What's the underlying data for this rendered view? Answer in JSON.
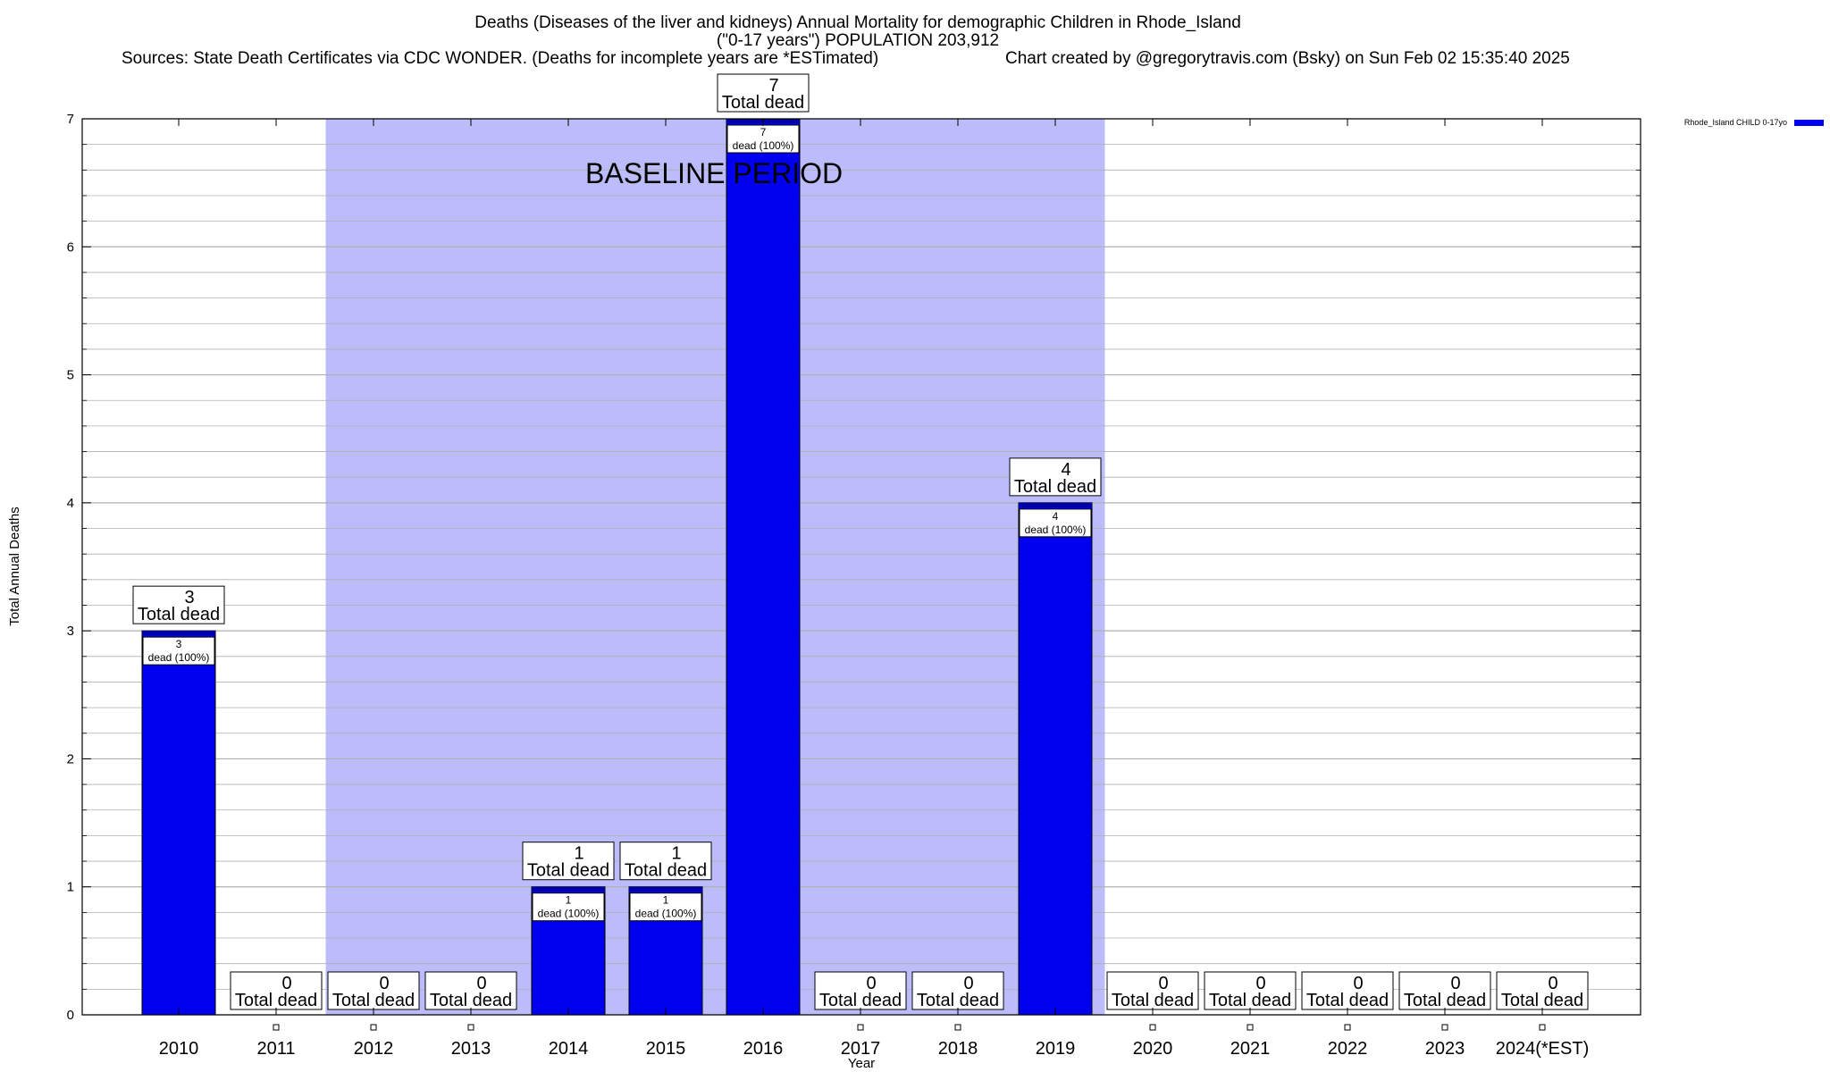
{
  "chart_data": {
    "type": "bar",
    "title_lines": [
      "Deaths (Diseases of the liver and kidneys) Annual Mortality for demographic Children in Rhode_Island",
      "(\"0-17 years\") POPULATION 203,912"
    ],
    "sources": "Sources: State Death Certificates via CDC WONDER. (Deaths for incomplete years are *ESTimated)",
    "credit": "Chart created by @gregorytravis.com (Bsky) on Sun Feb 02 15:35:40 2025",
    "xlabel": "Year",
    "ylabel": "Total Annual Deaths",
    "ylim": [
      0,
      7
    ],
    "yticks": [
      "0",
      "1",
      "2",
      "3",
      "4",
      "5",
      "6",
      "7"
    ],
    "categories": [
      "2010",
      "2011",
      "2012",
      "2013",
      "2014",
      "2015",
      "2016",
      "2017",
      "2018",
      "2019",
      "2020",
      "2021",
      "2022",
      "2023",
      "2024(*EST)"
    ],
    "series": [
      {
        "name": "Rhode_Island CHILD 0-17yo",
        "values": [
          3,
          0,
          0,
          0,
          1,
          1,
          7,
          0,
          0,
          4,
          0,
          0,
          0,
          0,
          0
        ]
      }
    ],
    "total_label": "Total dead",
    "inner_labels": [
      "3",
      "",
      "",
      "",
      "1",
      "1",
      "7",
      "",
      "",
      "4",
      "",
      "",
      "",
      "",
      ""
    ],
    "inner_sub_label": "dead (100%)",
    "baseline": {
      "label": "BASELINE PERIOD",
      "start": "2012",
      "end": "2019"
    },
    "grid": true,
    "legend": "top-right",
    "colors": {
      "bar": "#0000ee",
      "bar_top": "#0000aa",
      "baseline": "#bcbcfb",
      "grid": "#b0b0b0"
    }
  }
}
